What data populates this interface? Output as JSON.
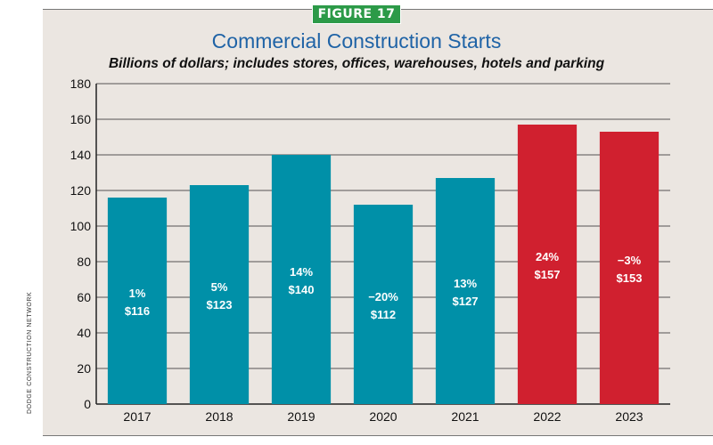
{
  "figure_label": "FIGURE 17",
  "source_credit": "DODGE CONSTRUCTION NETWORK",
  "colors": {
    "historical": "#0090a8",
    "forecast": "#d0202f",
    "title": "#1f63a6",
    "figure_tag": "#2c9a48"
  },
  "chart_data": {
    "type": "bar",
    "title": "Commercial Construction Starts",
    "subtitle": "Billions of dollars; includes stores, offices, warehouses, hotels and parking",
    "xlabel": "",
    "ylabel": "",
    "ylim": [
      0,
      180
    ],
    "yticks": [
      0,
      20,
      40,
      60,
      80,
      100,
      120,
      140,
      160,
      180
    ],
    "grid": true,
    "categories": [
      "2017",
      "2018",
      "2019",
      "2020",
      "2021",
      "2022",
      "2023"
    ],
    "values": [
      116,
      123,
      140,
      112,
      127,
      157,
      153
    ],
    "pct_labels": [
      "1%",
      "5%",
      "14%",
      "−20%",
      "13%",
      "24%",
      "−3%"
    ],
    "value_labels": [
      "$116",
      "$123",
      "$140",
      "$112",
      "$127",
      "$157",
      "$153"
    ],
    "bar_status": [
      "historical",
      "historical",
      "historical",
      "historical",
      "historical",
      "forecast",
      "forecast"
    ]
  }
}
